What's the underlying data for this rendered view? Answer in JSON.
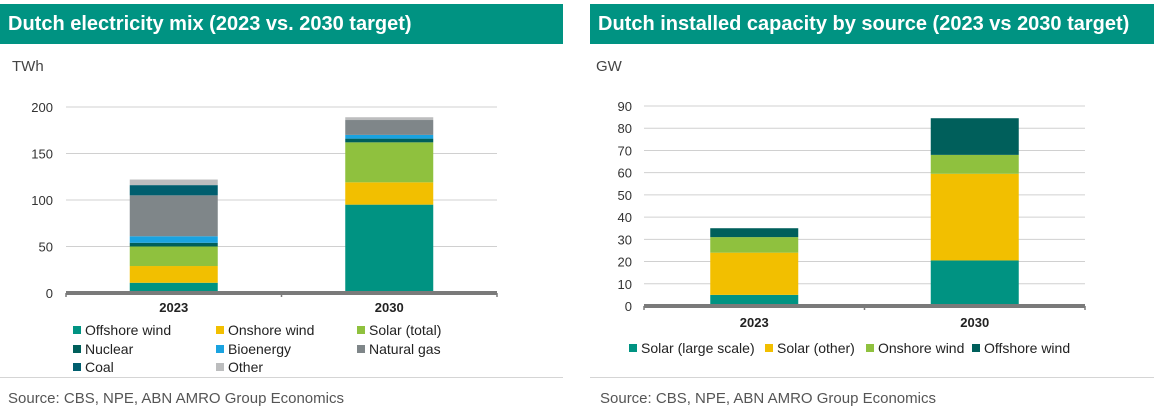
{
  "left": {
    "title": "Dutch electricity mix (2023 vs. 2030 target)",
    "unit": "TWh",
    "source": "Source: CBS, NPE, ABN AMRO Group Economics"
  },
  "right": {
    "title": "Dutch installed capacity by source (2023 vs 2030 target)",
    "unit": "GW",
    "source": "Source: CBS, NPE, ABN AMRO Group Economics"
  },
  "chart_data": [
    {
      "type": "bar",
      "stacked": true,
      "title": "Dutch electricity mix (2023 vs. 2030 target)",
      "ylabel": "TWh",
      "categories": [
        "2023",
        "2030"
      ],
      "ylim": [
        0,
        200
      ],
      "yticks": [
        0,
        50,
        100,
        150,
        200
      ],
      "grid": true,
      "legend_position": "bottom",
      "series": [
        {
          "name": "Offshore wind",
          "color": "#009382",
          "values": [
            11,
            95
          ]
        },
        {
          "name": "Onshore wind",
          "color": "#f2bf00",
          "values": [
            18,
            24
          ]
        },
        {
          "name": "Solar (total)",
          "color": "#8fc13e",
          "values": [
            21,
            43
          ]
        },
        {
          "name": "Nuclear",
          "color": "#005f5b",
          "values": [
            4,
            4
          ]
        },
        {
          "name": "Bioenergy",
          "color": "#1aa3e0",
          "values": [
            7,
            4
          ]
        },
        {
          "name": "Natural gas",
          "color": "#7f8689",
          "values": [
            44,
            16
          ]
        },
        {
          "name": "Coal",
          "color": "#005e6e",
          "values": [
            11,
            0
          ]
        },
        {
          "name": "Other",
          "color": "#bcbdbe",
          "values": [
            6,
            3
          ]
        }
      ]
    },
    {
      "type": "bar",
      "stacked": true,
      "title": "Dutch installed capacity by source (2023 vs 2030 target)",
      "ylabel": "GW",
      "categories": [
        "2023",
        "2030"
      ],
      "ylim": [
        0,
        90
      ],
      "yticks": [
        0,
        10,
        20,
        30,
        40,
        50,
        60,
        70,
        80,
        90
      ],
      "grid": true,
      "legend_position": "bottom",
      "series": [
        {
          "name": "Solar (large scale)",
          "color": "#009382",
          "values": [
            5,
            20.5
          ]
        },
        {
          "name": "Solar (other)",
          "color": "#f2bf00",
          "values": [
            19,
            39
          ]
        },
        {
          "name": "Onshore wind",
          "color": "#8fc13e",
          "values": [
            7,
            8.5
          ]
        },
        {
          "name": "Offshore wind",
          "color": "#005f5b",
          "values": [
            4,
            16.5
          ]
        }
      ]
    }
  ]
}
